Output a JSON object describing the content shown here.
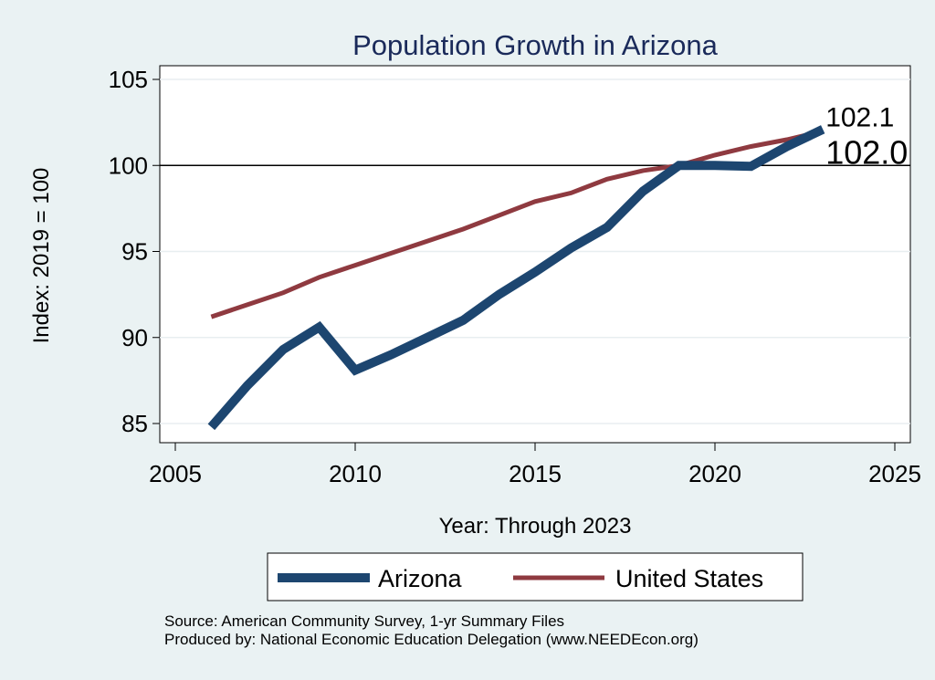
{
  "chart_data": {
    "type": "line",
    "title": "Population Growth in Arizona",
    "xlabel": "Year: Through 2023",
    "ylabel": "Index: 2019 = 100",
    "xlim": [
      2005,
      2025
    ],
    "ylim": [
      84,
      105
    ],
    "xticks": [
      2005,
      2010,
      2015,
      2020,
      2025
    ],
    "yticks": [
      85,
      90,
      95,
      100,
      105
    ],
    "reference_line": 100,
    "x": [
      2006,
      2007,
      2008,
      2009,
      2010,
      2011,
      2012,
      2013,
      2014,
      2015,
      2016,
      2017,
      2018,
      2019,
      2020,
      2021,
      2022,
      2023
    ],
    "series": [
      {
        "name": "Arizona",
        "color": "#1d4670",
        "values": [
          84.8,
          87.2,
          89.3,
          90.6,
          88.1,
          89.0,
          90.0,
          91.0,
          92.5,
          93.8,
          95.2,
          96.4,
          98.5,
          100.0,
          100.0,
          99.95,
          101.1,
          102.1
        ]
      },
      {
        "name": "United States",
        "color": "#8f3a40",
        "values": [
          91.2,
          91.9,
          92.6,
          93.5,
          94.2,
          94.9,
          95.6,
          96.3,
          97.1,
          97.9,
          98.4,
          99.2,
          99.7,
          100.0,
          100.6,
          101.1,
          101.5,
          102.0
        ]
      }
    ],
    "data_labels": [
      {
        "series": "Arizona",
        "text": "102.1"
      },
      {
        "series": "United States",
        "text": "102.0"
      }
    ],
    "legend_position": "bottom"
  },
  "footer": {
    "source": "Source: American Community Survey, 1-yr Summary Files",
    "produced_by": "Produced by: National Economic Education Delegation (www.NEEDEcon.org)"
  }
}
